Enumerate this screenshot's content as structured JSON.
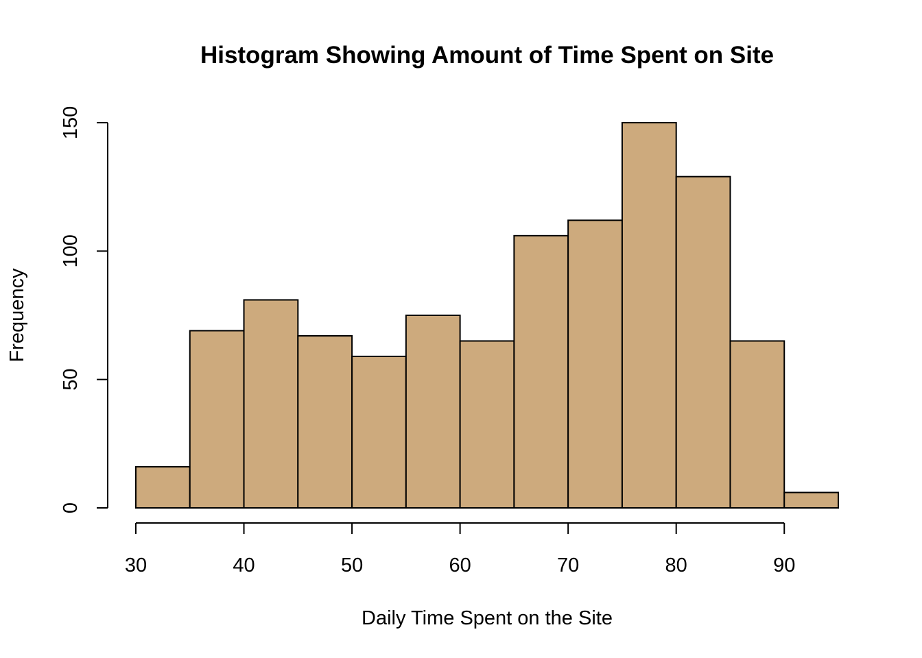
{
  "chart_data": {
    "type": "bar",
    "title": "Histogram Showing Amount of Time Spent on Site",
    "xlabel": "Daily Time Spent on the Site",
    "ylabel": "Frequency",
    "bin_edges": [
      30,
      35,
      40,
      45,
      50,
      55,
      60,
      65,
      70,
      75,
      80,
      85,
      90,
      95
    ],
    "values": [
      16,
      69,
      81,
      67,
      59,
      75,
      65,
      106,
      112,
      150,
      129,
      65,
      6
    ],
    "xlim": [
      30,
      95
    ],
    "ylim": [
      0,
      150
    ],
    "x_ticks": [
      30,
      40,
      50,
      60,
      70,
      80,
      90
    ],
    "x_tick_labels": [
      "30",
      "40",
      "50",
      "60",
      "70",
      "80",
      "90"
    ],
    "y_ticks": [
      0,
      50,
      100,
      150
    ],
    "y_tick_labels": [
      "0",
      "50",
      "100",
      "150"
    ],
    "grid": false,
    "bar_color": "#cdaa7d",
    "edge_color": "#000000"
  }
}
